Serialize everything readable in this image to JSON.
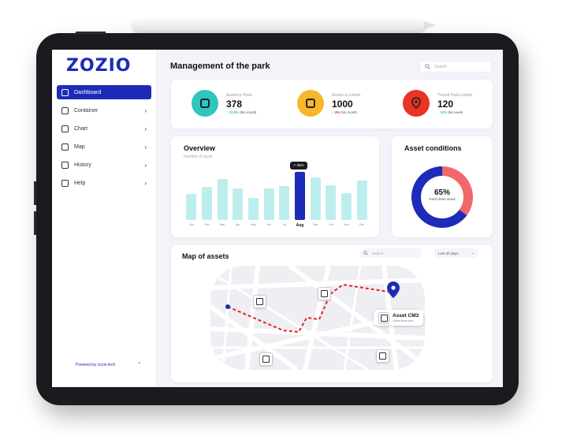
{
  "app": {
    "logo": "ZOZIO",
    "powered_by": "Powered by zozio.tech"
  },
  "sidebar": {
    "items": [
      {
        "label": "Dashboard",
        "active": true,
        "icon": "dashboard-icon",
        "has_chevron": false
      },
      {
        "label": "Container",
        "active": false,
        "icon": "container-icon",
        "has_chevron": true
      },
      {
        "label": "Chart",
        "active": false,
        "icon": "chart-icon",
        "has_chevron": true
      },
      {
        "label": "Map",
        "active": false,
        "icon": "map-pin-icon",
        "has_chevron": true
      },
      {
        "label": "History",
        "active": false,
        "icon": "history-icon",
        "has_chevron": true
      },
      {
        "label": "Help",
        "active": false,
        "icon": "help-icon",
        "has_chevron": true
      }
    ]
  },
  "header": {
    "title": "Management of the park",
    "search_placeholder": "Search"
  },
  "stats": [
    {
      "label": "Assets in Paris",
      "value": "378",
      "pct": "31.8%",
      "period": "this month",
      "trend": "up",
      "color": "#2fc6be",
      "icon": "box-icon"
    },
    {
      "label": "Assets in Lisbon",
      "value": "1000",
      "pct": "3%",
      "period": "this month",
      "trend": "down",
      "color": "#f6b72a",
      "icon": "box-icon"
    },
    {
      "label": "Transit Paris-Lisbon",
      "value": "120",
      "pct": "11%",
      "period": "this week",
      "trend": "up",
      "color": "#ea3323",
      "icon": "route-icon"
    }
  ],
  "overview": {
    "title": "Overview",
    "subtitle": "Number of asset",
    "tooltip": "35%"
  },
  "chart_data": {
    "type": "bar",
    "title": "Overview",
    "ylabel": "Number of asset",
    "categories": [
      "Jan",
      "Feb",
      "Mar",
      "Apr",
      "May",
      "Jun",
      "Jul",
      "Aug",
      "Sep",
      "Oct",
      "Nov",
      "Dec"
    ],
    "values": [
      35,
      45,
      55,
      42,
      30,
      42,
      46,
      65,
      57,
      47,
      36,
      53
    ],
    "highlight": "Aug",
    "highlight_label": "35%",
    "ylim": [
      0,
      70
    ],
    "grid": false,
    "colors": {
      "bar": "#bdeeee",
      "highlight": "#1d2bb8"
    }
  },
  "conditions": {
    "title": "Asset conditions",
    "value_pct": "65%",
    "value_label": "Total clean asset",
    "clean_fraction": 0.65,
    "colors": {
      "clean": "#1d2bb8",
      "other": "#f2676a"
    }
  },
  "map": {
    "title": "Map of assets",
    "search_placeholder": "Search",
    "range": "Last 30 days",
    "asset_name": "Asset CM3",
    "asset_distance": "10km from you"
  },
  "colors": {
    "brand": "#1d2bb8",
    "route": "#e8231a"
  }
}
